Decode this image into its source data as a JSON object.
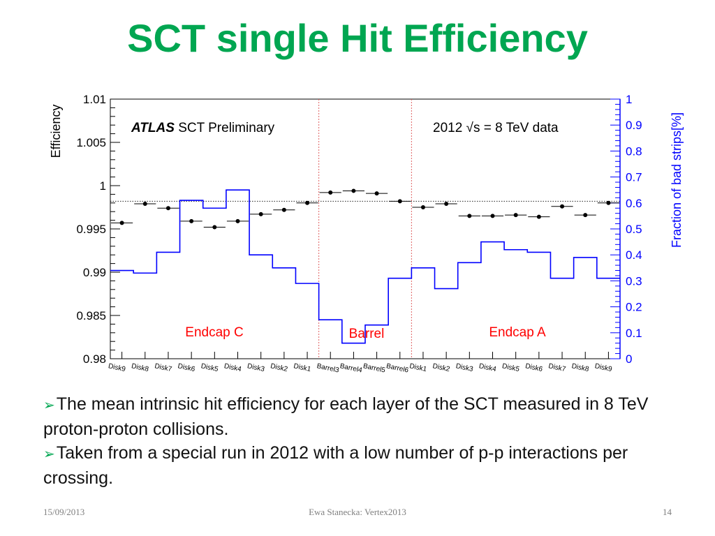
{
  "slide": {
    "title": "SCT single Hit Efficiency",
    "bullets": [
      "The mean intrinsic hit efficiency for each layer of the SCT measured in 8 TeV proton-proton collisions.",
      "Taken from a special run in 2012 with a low number of p-p interactions per crossing."
    ],
    "bullet_icon": "arrow-right-icon",
    "footer": {
      "date": "15/09/2013",
      "author": "Ewa Stanecka: Vertex2013",
      "page": "14"
    },
    "title_color": "#00a651"
  },
  "chart_data": {
    "type": "line",
    "title": "",
    "annotations": {
      "experiment": "ATLAS",
      "experiment_label": "SCT Preliminary",
      "dataset": "2012 √s = 8 TeV data",
      "regions": [
        "Endcap C",
        "Barrel",
        "Endcap A"
      ]
    },
    "categories": [
      "Disk9",
      "Disk8",
      "Disk7",
      "Disk6",
      "Disk5",
      "Disk4",
      "Disk3",
      "Disk2",
      "Disk1",
      "Barrel3",
      "Barrel4",
      "Barrel5",
      "Barrel6",
      "Disk1",
      "Disk2",
      "Disk3",
      "Disk4",
      "Disk5",
      "Disk6",
      "Disk7",
      "Disk8",
      "Disk9"
    ],
    "ylabel": "Efficiency",
    "ylim": [
      0.98,
      1.01
    ],
    "yticks": [
      "0.98",
      "0.985",
      "0.99",
      "0.995",
      "1",
      "1.005",
      "1.01"
    ],
    "y2label": "Fraction of bad strips[%]",
    "y2lim": [
      0,
      1
    ],
    "y2ticks": [
      "0",
      "0.1",
      "0.2",
      "0.3",
      "0.4",
      "0.5",
      "0.6",
      "0.7",
      "0.8",
      "0.9",
      "1"
    ],
    "mean_efficiency": 0.9982,
    "region_boundaries_after": [
      9,
      13
    ],
    "series": [
      {
        "axis": "left",
        "style": "points",
        "color": "#000000",
        "values": [
          0.9957,
          0.9979,
          0.9974,
          0.9959,
          0.9952,
          0.9959,
          0.9967,
          0.9972,
          0.998,
          0.9992,
          0.9994,
          0.9991,
          0.9982,
          0.9975,
          0.9979,
          0.9965,
          0.9965,
          0.9966,
          0.9964,
          0.9976,
          0.9966,
          0.998
        ]
      },
      {
        "axis": "right",
        "style": "step",
        "color": "#0000ff",
        "values": [
          0.34,
          0.33,
          0.41,
          0.61,
          0.58,
          0.65,
          0.4,
          0.35,
          0.29,
          0.15,
          0.06,
          0.13,
          0.31,
          0.35,
          0.27,
          0.37,
          0.45,
          0.42,
          0.41,
          0.31,
          0.39,
          0.31
        ]
      }
    ],
    "colors": {
      "axis_right": "#0000ff",
      "regions": "#ff0000",
      "boundary": "#e06060"
    }
  }
}
